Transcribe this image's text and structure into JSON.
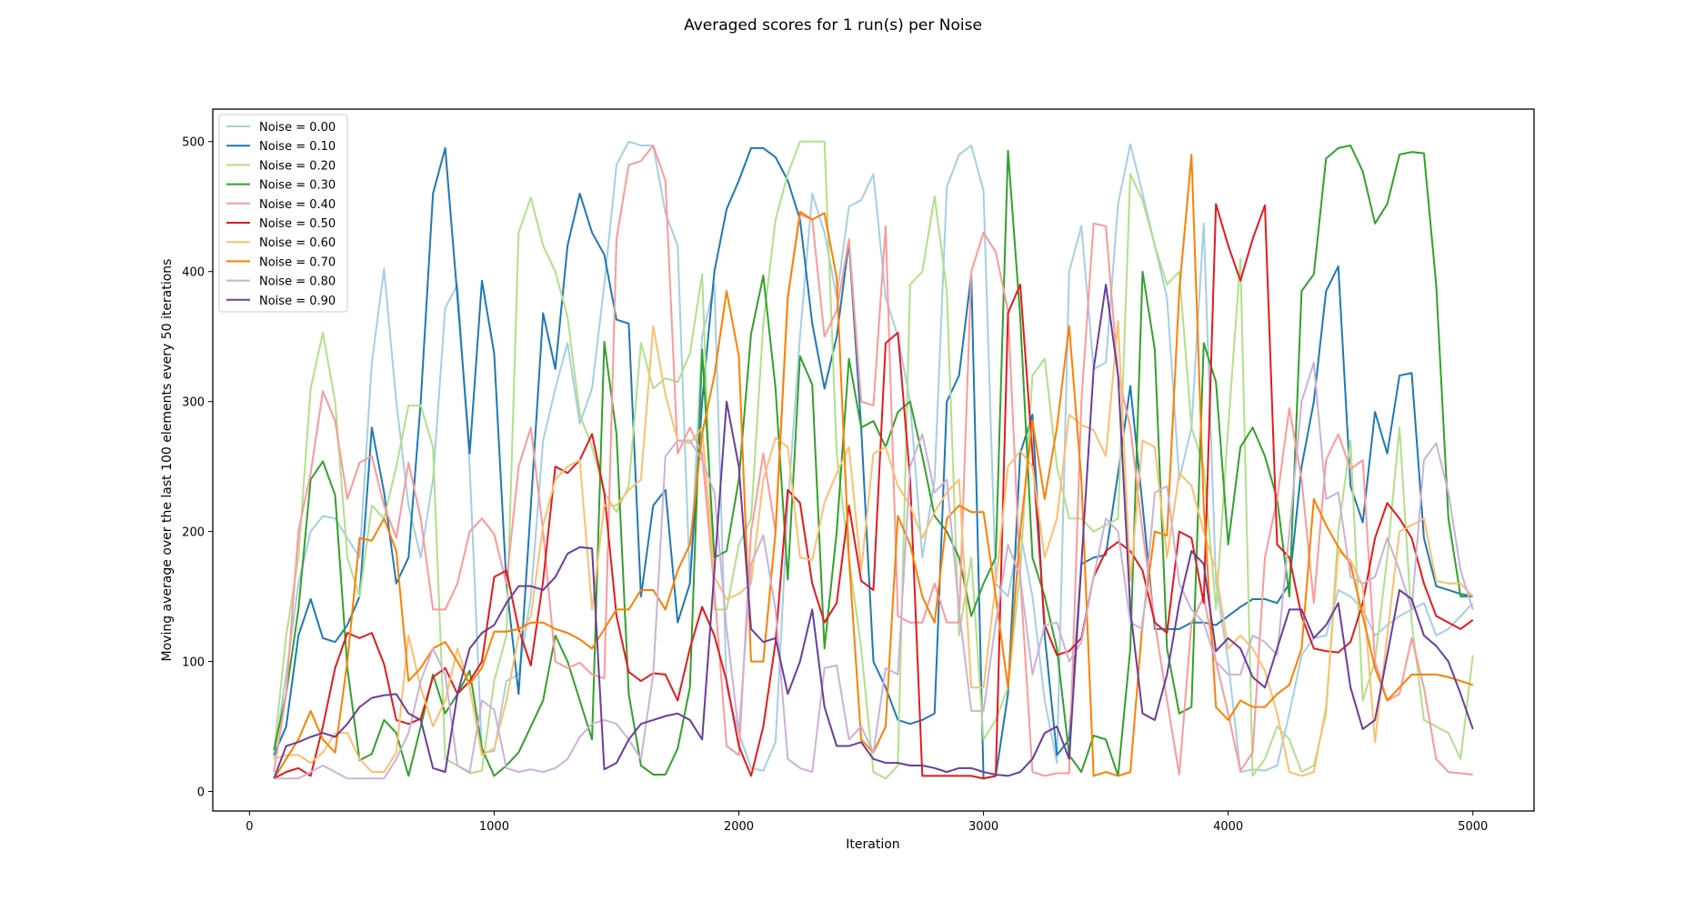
{
  "chart_data": {
    "type": "line",
    "title": "Averaged scores for 1 run(s) per Noise",
    "xlabel": "Iteration",
    "ylabel": "Moving average over the last 100 elements every 50 iterations",
    "xlim": [
      -150,
      5250
    ],
    "ylim": [
      -15,
      525
    ],
    "xticks": [
      0,
      1000,
      2000,
      3000,
      4000,
      5000
    ],
    "yticks": [
      0,
      100,
      200,
      300,
      400,
      500
    ],
    "grid": false,
    "legend_position": "top-left",
    "x": [
      100,
      150,
      200,
      250,
      300,
      350,
      400,
      450,
      500,
      550,
      600,
      650,
      700,
      750,
      800,
      850,
      900,
      950,
      1000,
      1050,
      1100,
      1150,
      1200,
      1250,
      1300,
      1350,
      1400,
      1450,
      1500,
      1550,
      1600,
      1650,
      1700,
      1750,
      1800,
      1850,
      1900,
      1950,
      2000,
      2050,
      2100,
      2150,
      2200,
      2250,
      2300,
      2350,
      2400,
      2450,
      2500,
      2550,
      2600,
      2650,
      2700,
      2750,
      2800,
      2850,
      2900,
      2950,
      3000,
      3050,
      3100,
      3150,
      3200,
      3250,
      3300,
      3350,
      3400,
      3450,
      3500,
      3550,
      3600,
      3650,
      3700,
      3750,
      3800,
      3850,
      3900,
      3950,
      4000,
      4050,
      4100,
      4150,
      4200,
      4250,
      4300,
      4350,
      4400,
      4450,
      4500,
      4550,
      4600,
      4650,
      4700,
      4750,
      4800,
      4850,
      4900,
      4950,
      5000
    ],
    "series": [
      {
        "name": "Noise = 0.00",
        "color": "#a6cee3",
        "values": [
          25,
          90,
          160,
          200,
          212,
          210,
          195,
          180,
          330,
          402,
          300,
          220,
          180,
          240,
          372,
          390,
          250,
          30,
          31,
          85,
          90,
          150,
          270,
          310,
          345,
          283,
          310,
          390,
          482,
          500,
          497,
          497,
          445,
          420,
          160,
          350,
          390,
          80,
          45,
          18,
          16,
          38,
          220,
          350,
          460,
          430,
          380,
          450,
          455,
          475,
          380,
          350,
          300,
          180,
          240,
          465,
          490,
          497,
          462,
          160,
          150,
          200,
          150,
          70,
          22,
          400,
          435,
          325,
          330,
          452,
          498,
          460,
          420,
          380,
          240,
          280,
          437,
          160,
          100,
          15,
          17,
          16,
          20,
          60,
          105,
          118,
          120,
          155,
          150,
          140,
          120,
          128,
          135,
          140,
          145,
          120,
          125,
          135,
          145
        ]
      },
      {
        "name": "Noise = 0.10",
        "color": "#1f78b4",
        "values": [
          28,
          50,
          120,
          148,
          118,
          115,
          128,
          150,
          280,
          230,
          160,
          180,
          300,
          460,
          495,
          380,
          260,
          393,
          337,
          160,
          75,
          220,
          368,
          325,
          420,
          460,
          430,
          413,
          363,
          360,
          150,
          220,
          232,
          130,
          160,
          300,
          400,
          448,
          470,
          495,
          495,
          488,
          470,
          440,
          360,
          310,
          350,
          423,
          280,
          100,
          80,
          55,
          52,
          55,
          60,
          300,
          320,
          398,
          10,
          12,
          75,
          260,
          290,
          120,
          28,
          40,
          175,
          180,
          182,
          245,
          312,
          220,
          125,
          125,
          125,
          130,
          130,
          128,
          135,
          142,
          148,
          148,
          145,
          160,
          250,
          300,
          385,
          404,
          235,
          207,
          292,
          260,
          320,
          322,
          195,
          158,
          155,
          152,
          150
        ]
      },
      {
        "name": "Noise = 0.20",
        "color": "#b2df8a",
        "values": [
          30,
          120,
          180,
          310,
          353,
          300,
          180,
          150,
          220,
          210,
          250,
          297,
          297,
          265,
          25,
          20,
          14,
          16,
          85,
          120,
          430,
          457,
          420,
          400,
          365,
          290,
          265,
          230,
          215,
          235,
          345,
          310,
          318,
          315,
          337,
          398,
          140,
          140,
          190,
          210,
          360,
          440,
          475,
          500,
          500,
          500,
          260,
          180,
          110,
          15,
          10,
          20,
          390,
          400,
          458,
          385,
          120,
          180,
          40,
          55,
          80,
          170,
          320,
          333,
          250,
          210,
          210,
          200,
          205,
          210,
          475,
          455,
          420,
          390,
          400,
          280,
          250,
          140,
          280,
          410,
          12,
          25,
          50,
          40,
          15,
          20,
          60,
          200,
          270,
          70,
          100,
          180,
          280,
          130,
          55,
          50,
          45,
          25,
          105
        ]
      },
      {
        "name": "Noise = 0.30",
        "color": "#33a02c",
        "values": [
          32,
          75,
          140,
          240,
          254,
          228,
          95,
          24,
          29,
          55,
          45,
          12,
          50,
          90,
          60,
          75,
          93,
          33,
          12,
          20,
          30,
          50,
          70,
          120,
          100,
          70,
          40,
          346,
          275,
          75,
          20,
          13,
          13,
          33,
          80,
          340,
          180,
          185,
          240,
          352,
          397,
          310,
          163,
          335,
          313,
          110,
          200,
          333,
          280,
          285,
          265,
          292,
          300,
          258,
          212,
          200,
          180,
          135,
          160,
          180,
          493,
          365,
          180,
          150,
          110,
          28,
          15,
          43,
          40,
          12,
          110,
          400,
          340,
          110,
          60,
          65,
          345,
          315,
          190,
          265,
          280,
          258,
          225,
          150,
          385,
          398,
          487,
          495,
          497,
          477,
          437,
          452,
          490,
          492,
          491,
          390,
          210,
          150,
          150
        ]
      },
      {
        "name": "Noise = 0.40",
        "color": "#fb9a99",
        "values": [
          15,
          75,
          200,
          245,
          308,
          285,
          225,
          253,
          258,
          220,
          195,
          253,
          210,
          140,
          140,
          160,
          200,
          210,
          198,
          160,
          250,
          280,
          200,
          100,
          95,
          99,
          90,
          87,
          425,
          482,
          485,
          497,
          470,
          260,
          280,
          260,
          155,
          35,
          28,
          200,
          260,
          200,
          380,
          444,
          440,
          350,
          370,
          425,
          300,
          297,
          435,
          135,
          130,
          130,
          160,
          130,
          130,
          400,
          430,
          415,
          370,
          165,
          15,
          12,
          14,
          14,
          300,
          437,
          435,
          320,
          280,
          200,
          130,
          70,
          13,
          130,
          150,
          100,
          60,
          16,
          30,
          180,
          225,
          295,
          240,
          145,
          255,
          275,
          248,
          255,
          100,
          70,
          75,
          118,
          80,
          25,
          15,
          14,
          13
        ]
      },
      {
        "name": "Noise = 0.50",
        "color": "#e31a1c",
        "values": [
          10,
          15,
          18,
          12,
          50,
          95,
          122,
          118,
          122,
          98,
          55,
          52,
          56,
          88,
          95,
          75,
          85,
          100,
          165,
          170,
          125,
          97,
          162,
          250,
          245,
          255,
          275,
          230,
          135,
          92,
          85,
          91,
          90,
          70,
          110,
          142,
          120,
          85,
          35,
          12,
          50,
          115,
          232,
          222,
          160,
          130,
          145,
          220,
          162,
          155,
          345,
          353,
          240,
          12,
          12,
          12,
          12,
          12,
          10,
          12,
          368,
          390,
          260,
          128,
          105,
          108,
          118,
          165,
          185,
          192,
          185,
          170,
          130,
          122,
          200,
          195,
          145,
          452,
          420,
          393,
          425,
          451,
          190,
          180,
          135,
          110,
          108,
          107,
          115,
          145,
          195,
          222,
          210,
          195,
          160,
          135,
          130,
          125,
          132
        ]
      },
      {
        "name": "Noise = 0.60",
        "color": "#fdbf6f",
        "values": [
          25,
          28,
          28,
          22,
          30,
          45,
          45,
          25,
          15,
          15,
          30,
          120,
          80,
          50,
          70,
          110,
          80,
          28,
          33,
          70,
          120,
          135,
          205,
          240,
          250,
          255,
          140,
          220,
          220,
          232,
          240,
          358,
          305,
          270,
          268,
          280,
          165,
          148,
          152,
          160,
          240,
          272,
          265,
          180,
          178,
          222,
          245,
          265,
          170,
          260,
          265,
          235,
          220,
          195,
          215,
          230,
          240,
          80,
          80,
          160,
          250,
          262,
          250,
          180,
          210,
          290,
          282,
          278,
          258,
          362,
          162,
          270,
          265,
          180,
          245,
          235,
          200,
          170,
          110,
          120,
          110,
          93,
          60,
          15,
          12,
          15,
          65,
          185,
          178,
          158,
          38,
          120,
          200,
          205,
          210,
          162,
          160,
          160,
          150
        ]
      },
      {
        "name": "Noise = 0.70",
        "color": "#ff7f00",
        "values": [
          10,
          25,
          40,
          62,
          40,
          30,
          100,
          195,
          193,
          210,
          185,
          85,
          95,
          110,
          115,
          100,
          83,
          95,
          123,
          123,
          125,
          130,
          130,
          125,
          122,
          117,
          110,
          125,
          140,
          140,
          155,
          155,
          140,
          170,
          190,
          275,
          320,
          385,
          335,
          100,
          100,
          200,
          380,
          446,
          440,
          445,
          395,
          180,
          40,
          30,
          50,
          212,
          190,
          150,
          130,
          210,
          220,
          215,
          215,
          150,
          80,
          200,
          285,
          225,
          280,
          358,
          240,
          12,
          15,
          12,
          15,
          130,
          200,
          197,
          385,
          490,
          220,
          65,
          55,
          70,
          65,
          65,
          75,
          82,
          110,
          225,
          205,
          188,
          175,
          135,
          95,
          70,
          80,
          90,
          90,
          90,
          88,
          85,
          82
        ]
      },
      {
        "name": "Noise = 0.80",
        "color": "#cab2d6",
        "values": [
          10,
          10,
          10,
          15,
          20,
          15,
          10,
          10,
          10,
          10,
          25,
          45,
          85,
          110,
          90,
          20,
          15,
          70,
          63,
          18,
          15,
          17,
          15,
          18,
          25,
          42,
          52,
          55,
          52,
          40,
          25,
          90,
          258,
          270,
          270,
          255,
          230,
          125,
          45,
          175,
          197,
          140,
          25,
          18,
          15,
          95,
          97,
          40,
          50,
          30,
          95,
          90,
          250,
          275,
          230,
          240,
          140,
          62,
          62,
          130,
          190,
          165,
          90,
          128,
          130,
          100,
          115,
          165,
          210,
          200,
          130,
          125,
          230,
          235,
          160,
          140,
          130,
          100,
          90,
          90,
          120,
          115,
          105,
          200,
          300,
          330,
          225,
          230,
          165,
          160,
          165,
          195,
          170,
          140,
          255,
          268,
          230,
          170,
          140
        ]
      },
      {
        "name": "Noise = 0.90",
        "color": "#6a3d9a",
        "values": [
          10,
          35,
          38,
          42,
          45,
          42,
          52,
          65,
          72,
          74,
          75,
          60,
          55,
          18,
          15,
          75,
          110,
          122,
          128,
          145,
          158,
          158,
          155,
          165,
          183,
          188,
          187,
          17,
          22,
          40,
          52,
          55,
          58,
          60,
          55,
          40,
          170,
          300,
          250,
          125,
          115,
          118,
          75,
          100,
          140,
          65,
          35,
          35,
          38,
          25,
          22,
          22,
          20,
          20,
          18,
          15,
          18,
          18,
          15,
          13,
          12,
          15,
          25,
          45,
          50,
          25,
          175,
          325,
          390,
          320,
          140,
          60,
          55,
          90,
          145,
          185,
          175,
          108,
          118,
          110,
          88,
          80,
          110,
          140,
          140,
          118,
          128,
          145,
          80,
          48,
          55,
          105,
          155,
          148,
          120,
          112,
          100,
          75,
          48
        ]
      }
    ]
  }
}
